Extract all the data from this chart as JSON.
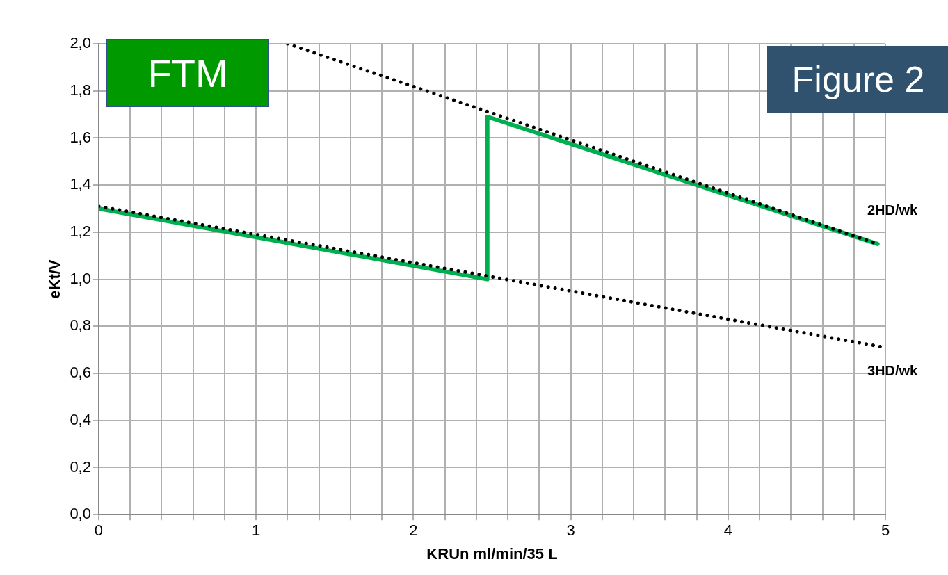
{
  "chart_data": {
    "type": "line",
    "xlabel": "KRUn ml/min/35 L",
    "ylabel": "eKt/V",
    "annotations": [
      "FTM",
      "Figure 2"
    ],
    "xlim": [
      0,
      5
    ],
    "xticks": [
      0,
      {
        "value": 0.2,
        "label": null
      },
      {
        "value": 0.4,
        "label": null
      },
      {
        "value": 0.6,
        "label": null
      },
      {
        "value": 0.8,
        "label": null
      },
      1,
      {
        "value": 1.2,
        "label": null
      },
      {
        "value": 1.4,
        "label": null
      },
      {
        "value": 1.6,
        "label": null
      },
      {
        "value": 1.8,
        "label": null
      },
      2,
      {
        "value": 2.2,
        "label": null
      },
      {
        "value": 2.4,
        "label": null
      },
      {
        "value": 2.6,
        "label": null
      },
      {
        "value": 2.8,
        "label": null
      },
      3,
      {
        "value": 3.2,
        "label": null
      },
      {
        "value": 3.4,
        "label": null
      },
      {
        "value": 3.6,
        "label": null
      },
      {
        "value": 3.8,
        "label": null
      },
      4,
      {
        "value": 4.2,
        "label": null
      },
      {
        "value": 4.4,
        "label": null
      },
      {
        "value": 4.6,
        "label": null
      },
      {
        "value": 4.8,
        "label": null
      },
      5
    ],
    "ylim": [
      0,
      2
    ],
    "yticks": [
      {
        "value": 0,
        "label": "0,0"
      },
      {
        "value": 0.2,
        "label": "0,2"
      },
      {
        "value": 0.4,
        "label": "0,4"
      },
      {
        "value": 0.6,
        "label": "0,6"
      },
      {
        "value": 0.8,
        "label": "0,8"
      },
      {
        "value": 1,
        "label": "1,0"
      },
      {
        "value": 1.2,
        "label": "1,2"
      },
      {
        "value": 1.4,
        "label": "1,4"
      },
      {
        "value": 1.6,
        "label": "1,6"
      },
      {
        "value": 1.8,
        "label": "1,8"
      },
      {
        "value": 2,
        "label": "2,0"
      }
    ],
    "grid": true,
    "legend": false,
    "marker": "none",
    "series": [
      {
        "name": "2HD/wk",
        "color": "#000000",
        "line_style": "dotted",
        "x": [
          1.2,
          4.95
        ],
        "values": [
          2.0,
          1.15
        ]
      },
      {
        "name": "3HD/wk",
        "color": "#000000",
        "line_style": "dotted",
        "x": [
          0,
          5
        ],
        "values": [
          1.31,
          0.71
        ]
      },
      {
        "color": "#00b050",
        "line_style": "solid",
        "x": [
          0,
          2.47,
          2.47,
          4.95
        ],
        "values": [
          1.3,
          1.0,
          1.69,
          1.15
        ]
      }
    ]
  }
}
